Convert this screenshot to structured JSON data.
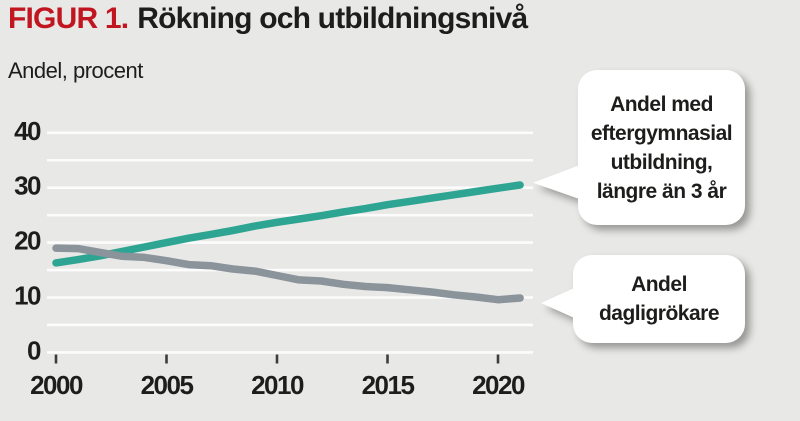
{
  "header": {
    "figure_label": "FIGUR 1.",
    "title": "Rökning och utbildningsnivå"
  },
  "y_axis_caption": "Andel, procent",
  "callouts": {
    "education": "Andel med\neftergymnasial\nutbildning,\nlängre än 3 år",
    "smoking": "Andel\ndagligrökare"
  },
  "colors": {
    "accent_red": "#c11620",
    "education_line": "#2ea493",
    "smoking_line": "#8b939b",
    "background": "#e8e8e6",
    "gridline": "#fcfcfc",
    "tick": "#3d3d3d",
    "text": "#1d1d1b"
  },
  "chart_data": {
    "type": "line",
    "title": "Rökning och utbildningsnivå",
    "ylabel": "Andel, procent",
    "x": [
      2000,
      2001,
      2002,
      2003,
      2004,
      2005,
      2006,
      2007,
      2008,
      2009,
      2010,
      2011,
      2012,
      2013,
      2014,
      2015,
      2016,
      2017,
      2018,
      2019,
      2020,
      2021
    ],
    "series": [
      {
        "name": "Andel med eftergymnasial utbildning, längre än 3 år",
        "color_key": "education_line",
        "values": [
          16.3,
          16.9,
          17.6,
          18.4,
          19.2,
          20.0,
          20.8,
          21.5,
          22.2,
          23.0,
          23.7,
          24.3,
          24.9,
          25.6,
          26.2,
          26.9,
          27.5,
          28.1,
          28.7,
          29.3,
          29.9,
          30.5
        ]
      },
      {
        "name": "Andel dagligrökare",
        "color_key": "smoking_line",
        "values": [
          19.0,
          18.9,
          18.2,
          17.5,
          17.3,
          16.7,
          16.0,
          15.8,
          15.2,
          14.8,
          14.0,
          13.2,
          13.0,
          12.4,
          12.0,
          11.8,
          11.4,
          11.0,
          10.5,
          10.1,
          9.6,
          9.9
        ]
      }
    ],
    "ylim": [
      0,
      40
    ],
    "yticks": [
      0,
      10,
      20,
      30,
      40
    ],
    "grid_step": 5,
    "xticks": [
      2000,
      2005,
      2010,
      2015,
      2020
    ],
    "grid": true,
    "legend_position": "callouts-right"
  }
}
